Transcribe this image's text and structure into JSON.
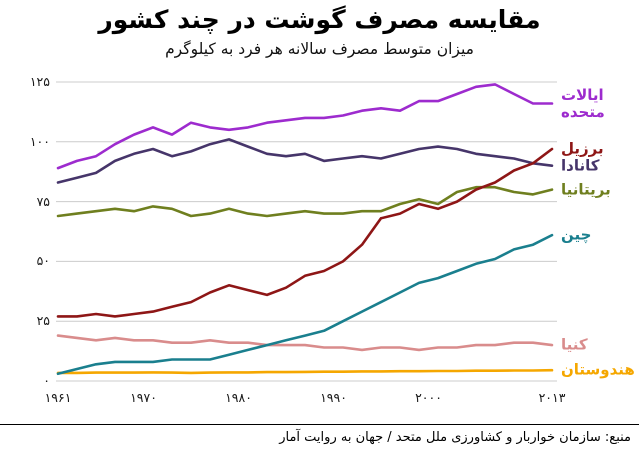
{
  "header": {
    "title": "مقایسه مصرف گوشت در چند کشور",
    "subtitle": "میزان متوسط مصرف سالانه هر فرد به کیلوگرم"
  },
  "footer": {
    "source": "منبع: سازمان خواربار و کشاورزی ملل متحد / جهان به روایت آمار"
  },
  "style": {
    "background_color": "#ffffff",
    "gridline_color": "#cccccc",
    "axis_text_color": "#1a1a1a",
    "title_color": "#000000"
  },
  "chart_data": {
    "type": "line",
    "title": "مقایسه مصرف گوشت در چند کشور",
    "subtitle": "میزان متوسط مصرف سالانه هر فرد به کیلوگرم",
    "unit": "کیلوگرم",
    "grid": "horizontal-only",
    "legend_position": "right-edge-labels",
    "xlim": [
      1961,
      2013
    ],
    "ylim": [
      0,
      125
    ],
    "x_ticks": [
      {
        "value": 1961,
        "label": "۱۹۶۱"
      },
      {
        "value": 1970,
        "label": "۱۹۷۰"
      },
      {
        "value": 1980,
        "label": "۱۹۸۰"
      },
      {
        "value": 1990,
        "label": "۱۹۹۰"
      },
      {
        "value": 2000,
        "label": "۲۰۰۰"
      },
      {
        "value": 2013,
        "label": "۲۰۱۳"
      }
    ],
    "y_ticks": [
      {
        "value": 0,
        "label": "۰"
      },
      {
        "value": 25,
        "label": "۲۵"
      },
      {
        "value": 50,
        "label": "۵۰"
      },
      {
        "value": 75,
        "label": "۷۵"
      },
      {
        "value": 100,
        "label": "۱۰۰"
      },
      {
        "value": 125,
        "label": "۱۲۵"
      }
    ],
    "x": [
      1961,
      1963,
      1965,
      1967,
      1969,
      1971,
      1973,
      1975,
      1977,
      1979,
      1981,
      1983,
      1985,
      1987,
      1989,
      1991,
      1993,
      1995,
      1997,
      1999,
      2001,
      2003,
      2005,
      2007,
      2009,
      2011,
      2013
    ],
    "series": [
      {
        "name": "united-states",
        "label": "ایالات متحده",
        "color": "#9d2bce",
        "values": [
          89,
          92,
          94,
          99,
          103,
          106,
          103,
          108,
          106,
          105,
          106,
          108,
          109,
          110,
          110,
          111,
          113,
          114,
          113,
          117,
          117,
          120,
          123,
          124,
          120,
          116,
          116
        ]
      },
      {
        "name": "brazil",
        "label": "برزیل",
        "color": "#8e1616",
        "values": [
          27,
          27,
          28,
          27,
          28,
          29,
          31,
          33,
          37,
          40,
          38,
          36,
          39,
          44,
          46,
          50,
          57,
          68,
          70,
          74,
          72,
          75,
          80,
          83,
          88,
          91,
          97
        ]
      },
      {
        "name": "canada",
        "label": "کانادا",
        "color": "#46356a",
        "values": [
          83,
          85,
          87,
          92,
          95,
          97,
          94,
          96,
          99,
          101,
          98,
          95,
          94,
          95,
          92,
          93,
          94,
          93,
          95,
          97,
          98,
          97,
          95,
          94,
          93,
          91,
          90
        ]
      },
      {
        "name": "britain",
        "label": "بریتانیا",
        "color": "#6f7f1f",
        "values": [
          69,
          70,
          71,
          72,
          71,
          73,
          72,
          69,
          70,
          72,
          70,
          69,
          70,
          71,
          70,
          70,
          71,
          71,
          74,
          76,
          74,
          79,
          81,
          81,
          79,
          78,
          80
        ]
      },
      {
        "name": "china",
        "label": "چین",
        "color": "#1a7f8e",
        "values": [
          3,
          5,
          7,
          8,
          8,
          8,
          9,
          9,
          9,
          11,
          13,
          15,
          17,
          19,
          21,
          25,
          29,
          33,
          37,
          41,
          43,
          46,
          49,
          51,
          55,
          57,
          61
        ]
      },
      {
        "name": "kenya",
        "label": "کنیا",
        "color": "#d98c8c",
        "values": [
          19,
          18,
          17,
          18,
          17,
          17,
          16,
          16,
          17,
          16,
          16,
          15,
          15,
          15,
          14,
          14,
          13,
          14,
          14,
          13,
          14,
          14,
          15,
          15,
          16,
          16,
          15
        ]
      },
      {
        "name": "india",
        "label": "هندوستان",
        "color": "#f5a700",
        "values": [
          3.4,
          3.4,
          3.5,
          3.5,
          3.5,
          3.6,
          3.5,
          3.4,
          3.5,
          3.6,
          3.6,
          3.7,
          3.7,
          3.8,
          3.9,
          3.9,
          4,
          4,
          4.1,
          4.1,
          4.2,
          4.2,
          4.3,
          4.3,
          4.4,
          4.4,
          4.5
        ]
      }
    ]
  }
}
